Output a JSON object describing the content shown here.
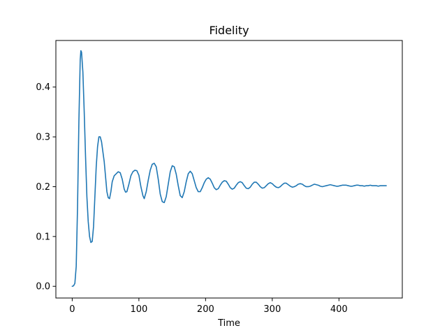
{
  "chart_data": {
    "type": "line",
    "title": "Fidelity",
    "xlabel": "Time",
    "ylabel": "",
    "xlim": [
      -24.5,
      495
    ],
    "ylim": [
      -0.0235,
      0.4935
    ],
    "xticks": [
      0,
      100,
      200,
      300,
      400
    ],
    "xtick_labels": [
      "0",
      "100",
      "200",
      "300",
      "400"
    ],
    "yticks": [
      0.0,
      0.1,
      0.2,
      0.3,
      0.4
    ],
    "ytick_labels": [
      "0.0",
      "0.1",
      "0.2",
      "0.3",
      "0.4"
    ],
    "grid": false,
    "series": [
      {
        "name": "Fidelity",
        "color": "#1f77b4",
        "points": [
          [
            0,
            0.0
          ],
          [
            2,
            0.001
          ],
          [
            4,
            0.006
          ],
          [
            6,
            0.04
          ],
          [
            8,
            0.16
          ],
          [
            10,
            0.33
          ],
          [
            12,
            0.455
          ],
          [
            13,
            0.473
          ],
          [
            14,
            0.47
          ],
          [
            16,
            0.43
          ],
          [
            18,
            0.35
          ],
          [
            20,
            0.26
          ],
          [
            22,
            0.18
          ],
          [
            24,
            0.13
          ],
          [
            26,
            0.1
          ],
          [
            28,
            0.088
          ],
          [
            30,
            0.09
          ],
          [
            32,
            0.12
          ],
          [
            34,
            0.18
          ],
          [
            36,
            0.24
          ],
          [
            38,
            0.28
          ],
          [
            40,
            0.3
          ],
          [
            42,
            0.3
          ],
          [
            44,
            0.29
          ],
          [
            46,
            0.27
          ],
          [
            48,
            0.25
          ],
          [
            50,
            0.22
          ],
          [
            52,
            0.19
          ],
          [
            54,
            0.178
          ],
          [
            56,
            0.176
          ],
          [
            58,
            0.19
          ],
          [
            60,
            0.21
          ],
          [
            63,
            0.222
          ],
          [
            66,
            0.226
          ],
          [
            69,
            0.23
          ],
          [
            72,
            0.228
          ],
          [
            75,
            0.215
          ],
          [
            78,
            0.195
          ],
          [
            80,
            0.189
          ],
          [
            82,
            0.19
          ],
          [
            85,
            0.205
          ],
          [
            88,
            0.222
          ],
          [
            91,
            0.23
          ],
          [
            94,
            0.233
          ],
          [
            97,
            0.232
          ],
          [
            100,
            0.223
          ],
          [
            103,
            0.2
          ],
          [
            106,
            0.182
          ],
          [
            108,
            0.176
          ],
          [
            111,
            0.19
          ],
          [
            114,
            0.213
          ],
          [
            117,
            0.233
          ],
          [
            120,
            0.245
          ],
          [
            123,
            0.247
          ],
          [
            126,
            0.24
          ],
          [
            129,
            0.215
          ],
          [
            132,
            0.185
          ],
          [
            135,
            0.17
          ],
          [
            138,
            0.168
          ],
          [
            141,
            0.18
          ],
          [
            144,
            0.205
          ],
          [
            147,
            0.23
          ],
          [
            150,
            0.242
          ],
          [
            153,
            0.24
          ],
          [
            156,
            0.225
          ],
          [
            159,
            0.202
          ],
          [
            162,
            0.182
          ],
          [
            165,
            0.178
          ],
          [
            168,
            0.19
          ],
          [
            171,
            0.21
          ],
          [
            174,
            0.226
          ],
          [
            177,
            0.231
          ],
          [
            180,
            0.226
          ],
          [
            183,
            0.212
          ],
          [
            186,
            0.198
          ],
          [
            189,
            0.19
          ],
          [
            192,
            0.19
          ],
          [
            195,
            0.198
          ],
          [
            198,
            0.208
          ],
          [
            201,
            0.215
          ],
          [
            204,
            0.218
          ],
          [
            207,
            0.215
          ],
          [
            210,
            0.207
          ],
          [
            213,
            0.198
          ],
          [
            216,
            0.194
          ],
          [
            219,
            0.196
          ],
          [
            222,
            0.203
          ],
          [
            225,
            0.209
          ],
          [
            228,
            0.212
          ],
          [
            231,
            0.211
          ],
          [
            234,
            0.205
          ],
          [
            237,
            0.198
          ],
          [
            240,
            0.195
          ],
          [
            243,
            0.197
          ],
          [
            246,
            0.203
          ],
          [
            249,
            0.208
          ],
          [
            252,
            0.21
          ],
          [
            255,
            0.208
          ],
          [
            258,
            0.202
          ],
          [
            261,
            0.197
          ],
          [
            264,
            0.196
          ],
          [
            267,
            0.199
          ],
          [
            270,
            0.205
          ],
          [
            273,
            0.209
          ],
          [
            276,
            0.209
          ],
          [
            279,
            0.205
          ],
          [
            282,
            0.2
          ],
          [
            285,
            0.197
          ],
          [
            288,
            0.198
          ],
          [
            291,
            0.202
          ],
          [
            294,
            0.206
          ],
          [
            297,
            0.208
          ],
          [
            300,
            0.206
          ],
          [
            303,
            0.202
          ],
          [
            306,
            0.199
          ],
          [
            309,
            0.198
          ],
          [
            312,
            0.2
          ],
          [
            315,
            0.204
          ],
          [
            318,
            0.207
          ],
          [
            321,
            0.207
          ],
          [
            324,
            0.204
          ],
          [
            327,
            0.201
          ],
          [
            330,
            0.199
          ],
          [
            333,
            0.2
          ],
          [
            336,
            0.202
          ],
          [
            339,
            0.205
          ],
          [
            342,
            0.206
          ],
          [
            345,
            0.205
          ],
          [
            348,
            0.202
          ],
          [
            351,
            0.2
          ],
          [
            354,
            0.2
          ],
          [
            357,
            0.201
          ],
          [
            360,
            0.203
          ],
          [
            363,
            0.205
          ],
          [
            366,
            0.204
          ],
          [
            369,
            0.203
          ],
          [
            372,
            0.201
          ],
          [
            375,
            0.2
          ],
          [
            378,
            0.201
          ],
          [
            381,
            0.202
          ],
          [
            384,
            0.203
          ],
          [
            387,
            0.204
          ],
          [
            390,
            0.203
          ],
          [
            393,
            0.202
          ],
          [
            396,
            0.201
          ],
          [
            399,
            0.201
          ],
          [
            402,
            0.202
          ],
          [
            405,
            0.203
          ],
          [
            408,
            0.203
          ],
          [
            411,
            0.203
          ],
          [
            414,
            0.202
          ],
          [
            417,
            0.201
          ],
          [
            420,
            0.201
          ],
          [
            423,
            0.202
          ],
          [
            426,
            0.203
          ],
          [
            429,
            0.203
          ],
          [
            432,
            0.202
          ],
          [
            435,
            0.202
          ],
          [
            438,
            0.201
          ],
          [
            441,
            0.202
          ],
          [
            444,
            0.202
          ],
          [
            447,
            0.203
          ],
          [
            450,
            0.202
          ],
          [
            453,
            0.202
          ],
          [
            456,
            0.202
          ],
          [
            459,
            0.201
          ],
          [
            462,
            0.202
          ],
          [
            465,
            0.202
          ],
          [
            468,
            0.202
          ],
          [
            471,
            0.202
          ]
        ]
      }
    ]
  }
}
